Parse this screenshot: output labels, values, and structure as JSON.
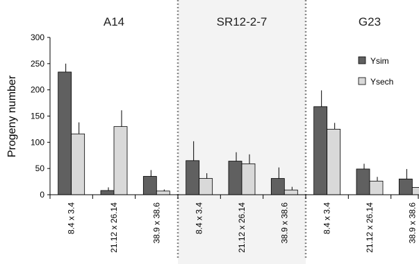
{
  "chart_data": {
    "type": "bar",
    "title": "",
    "xlabel": "",
    "ylabel": "Progeny number",
    "ylim": [
      0,
      300
    ],
    "yticks": [
      0,
      50,
      100,
      150,
      200,
      250,
      300
    ],
    "grid": false,
    "legend_position": "top-right",
    "groups": [
      {
        "name": "A14",
        "shaded": false,
        "categories": [
          "8.4 x 3.4",
          "21.12 x 26.14",
          "38.9 x 38.6"
        ]
      },
      {
        "name": "SR12-2-7",
        "shaded": true,
        "categories": [
          "8.4 x 3.4",
          "21.12 x 26.14",
          "38.9 x 38.6"
        ]
      },
      {
        "name": "G23",
        "shaded": false,
        "categories": [
          "8.4 x 3.4",
          "21.12 x 26.14",
          "38.9 x 38.6"
        ]
      }
    ],
    "series": [
      {
        "name": "Ysim",
        "color": "#606060",
        "values": [
          234,
          8,
          35,
          65,
          64,
          31,
          168,
          49,
          30
        ],
        "errors": [
          16,
          6,
          12,
          37,
          17,
          21,
          31,
          10,
          19
        ]
      },
      {
        "name": "Ysech",
        "color": "#d9d9d9",
        "values": [
          116,
          130,
          7,
          31,
          59,
          9,
          125,
          26,
          14
        ],
        "errors": [
          22,
          31,
          3,
          10,
          18,
          6,
          12,
          8,
          5
        ]
      }
    ]
  }
}
